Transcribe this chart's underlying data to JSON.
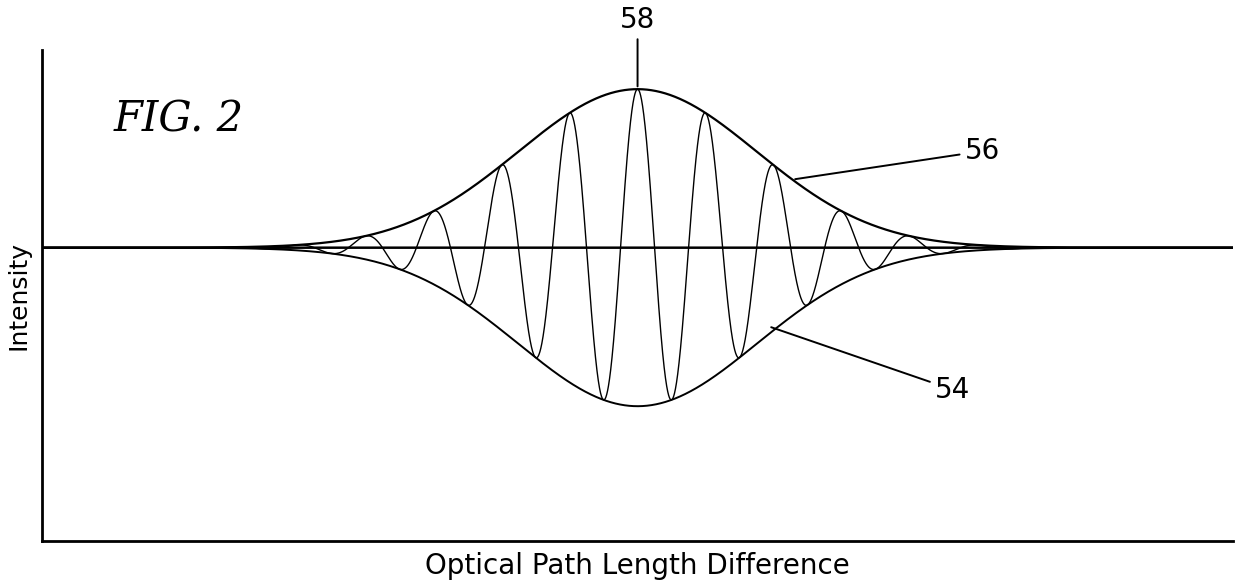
{
  "xlabel": "Optical Path Length Difference",
  "ylabel": "Intensity",
  "fig_label": "FIG. 2",
  "fig_label_fontsize": 30,
  "xlabel_fontsize": 20,
  "ylabel_fontsize": 18,
  "annotation_fontsize": 20,
  "background_color": "#ffffff",
  "line_color": "#000000",
  "x_min": -10,
  "x_max": 10,
  "baseline": 0.0,
  "gaussian_sigma": 2.0,
  "gaussian_amplitude": 1.0,
  "fringe_frequency": 5.5,
  "ylim_bottom": -1.5,
  "ylim_top": 1.6
}
